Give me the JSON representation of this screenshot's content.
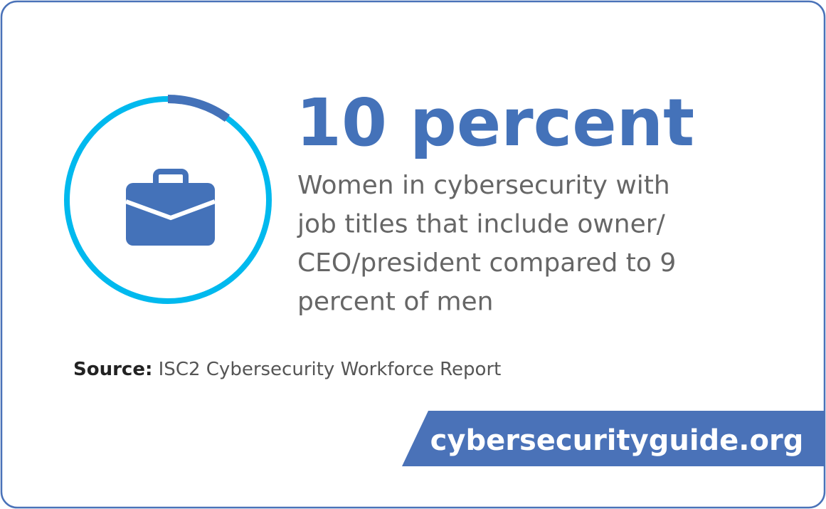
{
  "stat": {
    "value": 10,
    "label": "10 percent"
  },
  "description": [
    "Women in cybersecurity with",
    "job titles that include owner/",
    "CEO/president compared to 9",
    "percent of men"
  ],
  "source": {
    "label": "Source:",
    "text": "ISC2 Cybersecurity Workforce Report"
  },
  "url": "cybersecurityguide.org"
}
